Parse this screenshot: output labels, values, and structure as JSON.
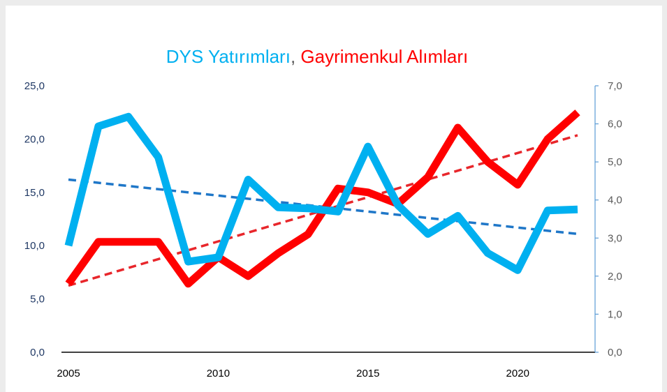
{
  "chart_data": {
    "type": "line",
    "title_parts": [
      {
        "text": "DYS Yatırımları",
        "color": "#00b0f0"
      },
      {
        "text": ", ",
        "color": "#595959"
      },
      {
        "text": "Gayrimenkul Alımları",
        "color": "#ff0000"
      }
    ],
    "x_ticks": [
      "2005",
      "2010",
      "2015",
      "2020"
    ],
    "left_axis": {
      "ylim": [
        0,
        25
      ],
      "ticks": [
        "0,0",
        "5,0",
        "10,0",
        "15,0",
        "20,0",
        "25,0"
      ]
    },
    "right_axis": {
      "ylim": [
        0,
        7
      ],
      "ticks": [
        "0,0",
        "1,0",
        "2,0",
        "3,0",
        "4,0",
        "5,0",
        "6,0",
        "7,0"
      ]
    },
    "x": [
      2005,
      2006,
      2007,
      2008,
      2009,
      2010,
      2011,
      2012,
      2013,
      2014,
      2015,
      2016,
      2017,
      2018,
      2019,
      2020,
      2021,
      2022
    ],
    "series": [
      {
        "key": "dys",
        "axis": "left",
        "color": "#00b0f0",
        "values": [
          10.0,
          21.2,
          22.1,
          18.3,
          8.5,
          8.9,
          16.2,
          13.6,
          13.5,
          13.2,
          19.3,
          13.8,
          11.1,
          12.8,
          9.3,
          7.7,
          13.3,
          13.4
        ]
      },
      {
        "key": "gayrimenkul",
        "axis": "right",
        "color": "#ff0000",
        "values": [
          1.8,
          2.9,
          2.9,
          2.9,
          1.8,
          2.5,
          2.0,
          2.6,
          3.1,
          4.3,
          4.2,
          3.9,
          4.6,
          5.9,
          5.0,
          4.4,
          5.6,
          6.3
        ]
      }
    ],
    "trendlines": [
      {
        "key": "dys-trend",
        "axis": "left",
        "color": "#1f77c8",
        "style": "dashed",
        "start": 16.2,
        "end": 11.1
      },
      {
        "key": "gayrimenkul-trend",
        "axis": "right",
        "color": "#e8262b",
        "style": "dashed",
        "start": 1.75,
        "end": 5.7
      }
    ],
    "grid": false,
    "legend": "none"
  }
}
